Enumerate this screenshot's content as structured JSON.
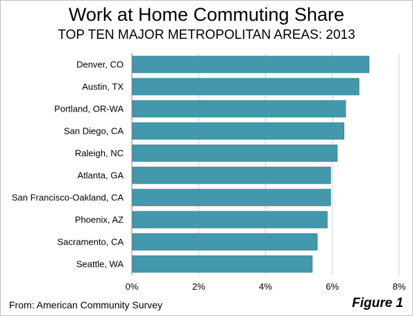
{
  "title": "Work at Home Commuting Share",
  "subtitle": "TOP TEN MAJOR METROPOLITAN AREAS: 2013",
  "source": "From: American Community Survey",
  "figure_label": "Figure 1",
  "colors": {
    "bar": "#4498ac",
    "bar_edge": "#35829a",
    "grid": "#d0d0d0",
    "axis": "#808080"
  },
  "chart_data": {
    "type": "bar",
    "orientation": "horizontal",
    "title": "Work at Home Commuting Share",
    "subtitle": "TOP TEN MAJOR METROPOLITAN AREAS: 2013",
    "xlabel": "",
    "ylabel": "",
    "categories": [
      "Denver, CO",
      "Austin, TX",
      "Portland, OR-WA",
      "San Diego, CA",
      "Raleigh, NC",
      "Atlanta, GA",
      "San Francisco-Oakland, CA",
      "Phoenix, AZ",
      "Sacramento, CA",
      "Seattle, WA"
    ],
    "values": [
      7.1,
      6.8,
      6.4,
      6.35,
      6.15,
      5.95,
      5.95,
      5.85,
      5.55,
      5.4
    ],
    "unit": "%",
    "xlim": [
      0,
      8
    ],
    "ticks": [
      0,
      2,
      4,
      6,
      8
    ],
    "tick_labels": [
      "0%",
      "2%",
      "4%",
      "6%",
      "8%"
    ],
    "grid": true
  }
}
